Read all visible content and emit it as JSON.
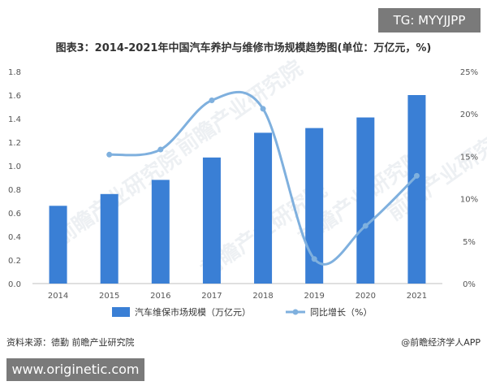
{
  "badges": {
    "tg": "TG: MYYJJPP",
    "site": "www.originetic.com"
  },
  "footer": {
    "source": "资料来源：德勤 前瞻产业研究院",
    "credit": "@前瞻经济学人APP"
  },
  "watermark": "前瞻产业研究院",
  "chart_data": {
    "type": "bar",
    "title": "图表3：2014-2021年中国汽车养护与维修市场规模趋势图(单位：万亿元，%)",
    "categories": [
      "2014",
      "2015",
      "2016",
      "2017",
      "2018",
      "2019",
      "2020",
      "2021"
    ],
    "series": [
      {
        "name": "汽车维保市场规模（万亿元）",
        "type": "bar",
        "axis": "left",
        "values": [
          0.66,
          0.76,
          0.88,
          1.07,
          1.28,
          1.32,
          1.41,
          1.6
        ],
        "color": "#3a7fd5"
      },
      {
        "name": "同比增长（%）",
        "type": "line",
        "axis": "right",
        "smooth": true,
        "values": [
          null,
          15.2,
          15.8,
          21.6,
          20.6,
          2.9,
          6.8,
          12.7
        ],
        "color": "#7fb0de"
      }
    ],
    "y_left": {
      "ylim": [
        0,
        1.8
      ],
      "ticks": [
        "0.0",
        "0.2",
        "0.4",
        "0.6",
        "0.8",
        "1.0",
        "1.2",
        "1.4",
        "1.6",
        "1.8"
      ]
    },
    "y_right": {
      "ylim": [
        0,
        25
      ],
      "ticks": [
        "0%",
        "5%",
        "10%",
        "15%",
        "20%",
        "25%"
      ]
    },
    "grid": false,
    "legend": "bottom"
  }
}
